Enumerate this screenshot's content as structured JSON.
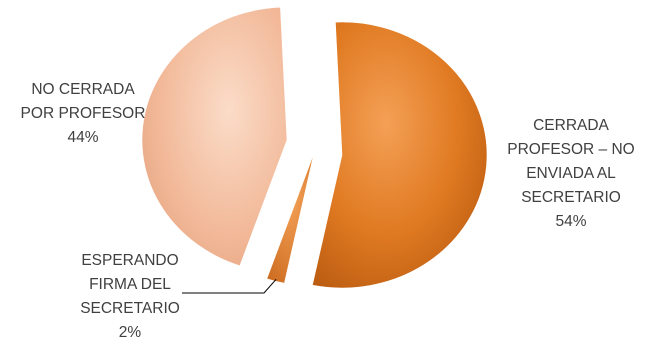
{
  "chart_data": {
    "type": "pie",
    "title": "",
    "exploded": true,
    "style": "3d-gradient",
    "slices": [
      {
        "label_lines": [
          "CERRADA",
          "PROFESOR – NO",
          "ENVIADA AL",
          "SECRETARIO"
        ],
        "value": 54,
        "value_text": "54%",
        "color": "#E07A22"
      },
      {
        "label_lines": [
          "ESPERANDO",
          "FIRMA DEL",
          "SECRETARIO"
        ],
        "value": 2,
        "value_text": "2%",
        "color": "#E58A35"
      },
      {
        "label_lines": [
          "NO CERRADA",
          "POR PROFESOR"
        ],
        "value": 44,
        "value_text": "44%",
        "color": "#F2B999"
      }
    ]
  }
}
